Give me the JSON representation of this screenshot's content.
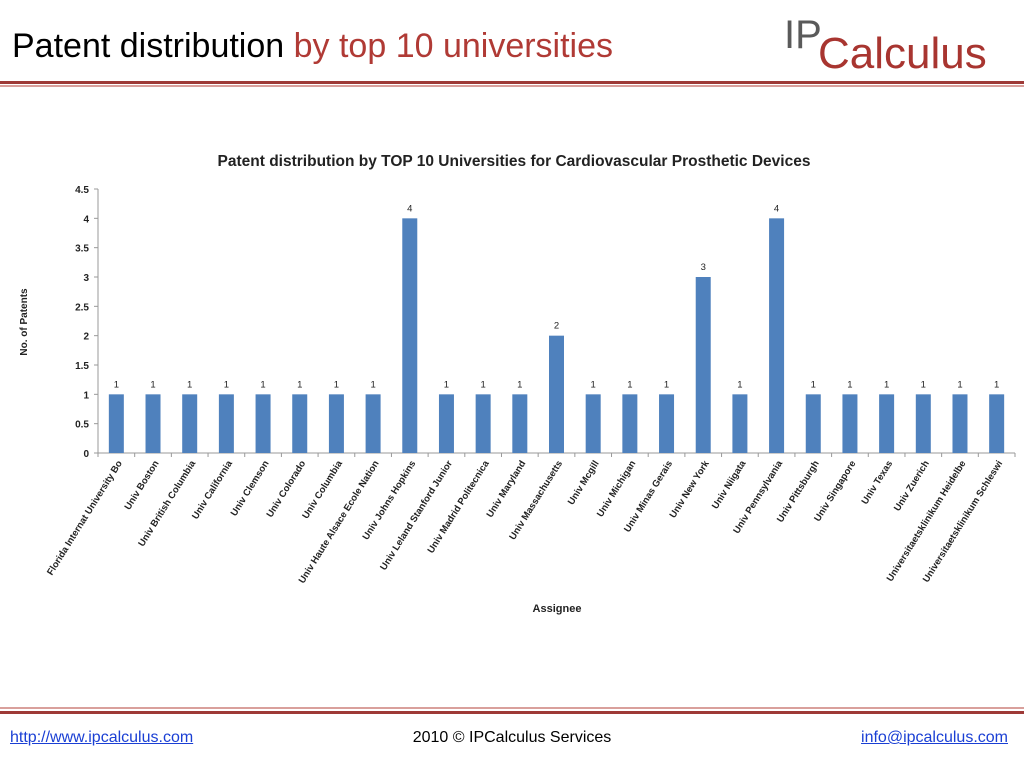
{
  "header": {
    "title_part1": "Patent distribution",
    "title_part2": "by top 10 universities",
    "logo_ip": "IP",
    "logo_rest": "Calculus"
  },
  "footer": {
    "website": "http://www.ipcalculus.com",
    "copyright": "2010 © IPCalculus Services",
    "email": "info@ipcalculus.com"
  },
  "colors": {
    "accent": "#9e3a37",
    "title_highlight": "#b03a35",
    "bar": "#4f81bd",
    "link": "#1a3fd4"
  },
  "chart_data": {
    "type": "bar",
    "title": "Patent distribution by TOP 10 Universities for Cardiovascular Prosthetic Devices",
    "xlabel": "Assignee",
    "ylabel": "No. of Patents",
    "ylim": [
      0,
      4.5
    ],
    "yticks": [
      "0",
      "0.5",
      "1",
      "1.5",
      "2",
      "2.5",
      "3",
      "3.5",
      "4",
      "4.5"
    ],
    "grid": false,
    "legend": "none",
    "categories": [
      "Florida Internat University Bo",
      "Univ Boston",
      "Univ British Columbia",
      "Univ California",
      "Univ Clemson",
      "Univ Colorado",
      "Univ Columbia",
      "Univ Haute Alsace Ecole Nation",
      "Univ Johns Hopkins",
      "Univ Leland Stanford Junior",
      "Univ Madrid Politecnica",
      "Univ Maryland",
      "Univ Massachusetts",
      "Univ Mcgill",
      "Univ Michigan",
      "Univ Minas Gerais",
      "Univ New York",
      "Univ Niigata",
      "Univ Pennsylvania",
      "Univ Pittsburgh",
      "Univ Singapore",
      "Univ Texas",
      "Univ Zuerich",
      "Universitaetsklinikum Heidelbe",
      "Universitaetsklinikum Schleswi"
    ],
    "values": [
      1,
      1,
      1,
      1,
      1,
      1,
      1,
      1,
      4,
      1,
      1,
      1,
      2,
      1,
      1,
      1,
      3,
      1,
      4,
      1,
      1,
      1,
      1,
      1,
      1
    ]
  }
}
